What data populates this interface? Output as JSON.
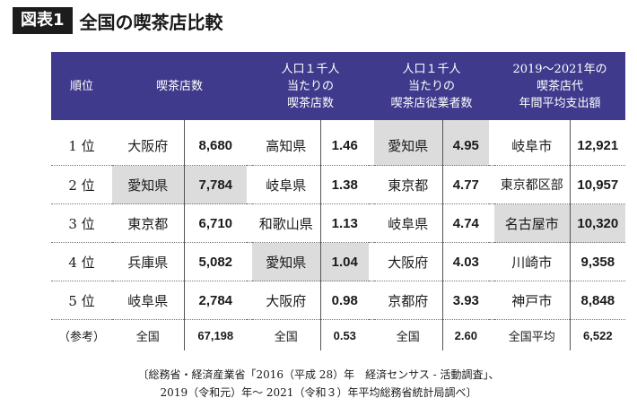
{
  "header": {
    "tag": "図表1",
    "title": "全国の喫茶店比較"
  },
  "columns": [
    "順位",
    "喫茶店数",
    "人口１千人当たりの喫茶店数",
    "人口１千人当たりの喫茶店従業者数",
    "2019〜2021年の喫茶店代年間平均支出額"
  ],
  "column_lines": {
    "rank": [
      "順位"
    ],
    "shops": [
      "喫茶店数"
    ],
    "per1000": [
      "人口１千人",
      "当たりの",
      "喫茶店数"
    ],
    "staff": [
      "人口１千人",
      "当たりの",
      "喫茶店従業者数"
    ],
    "spend": [
      "2019〜2021年の",
      "喫茶店代",
      "年間平均支出額"
    ]
  },
  "rows": [
    {
      "rank": "1 位",
      "a_name": "大阪府",
      "a_val": "8,680",
      "b_name": "高知県",
      "b_val": "1.46",
      "c_name": "愛知県",
      "c_val": "4.95",
      "d_name": "岐阜市",
      "d_val": "12,921"
    },
    {
      "rank": "2 位",
      "a_name": "愛知県",
      "a_val": "7,784",
      "b_name": "岐阜県",
      "b_val": "1.38",
      "c_name": "東京都",
      "c_val": "4.77",
      "d_name": "東京都区部",
      "d_val": "10,957"
    },
    {
      "rank": "3 位",
      "a_name": "東京都",
      "a_val": "6,710",
      "b_name": "和歌山県",
      "b_val": "1.13",
      "c_name": "岐阜県",
      "c_val": "4.74",
      "d_name": "名古屋市",
      "d_val": "10,320"
    },
    {
      "rank": "4 位",
      "a_name": "兵庫県",
      "a_val": "5,082",
      "b_name": "愛知県",
      "b_val": "1.04",
      "c_name": "大阪府",
      "c_val": "4.03",
      "d_name": "川崎市",
      "d_val": "9,358"
    },
    {
      "rank": "5 位",
      "a_name": "岐阜県",
      "a_val": "2,784",
      "b_name": "大阪府",
      "b_val": "0.98",
      "c_name": "京都府",
      "c_val": "3.93",
      "d_name": "神戸市",
      "d_val": "8,848"
    },
    {
      "rank": "（参考）",
      "a_name": "全国",
      "a_val": "67,198",
      "b_name": "全国",
      "b_val": "0.53",
      "c_name": "全国",
      "c_val": "2.60",
      "d_name": "全国平均",
      "d_val": "6,522"
    }
  ],
  "source": {
    "line1": "〔総務省・経済産業省「2016（平成 28）年　経済センサス - 活動調査」、",
    "line2": "2019（令和元）年〜 2021（令和３）年平均総務省統計局調べ〕"
  }
}
